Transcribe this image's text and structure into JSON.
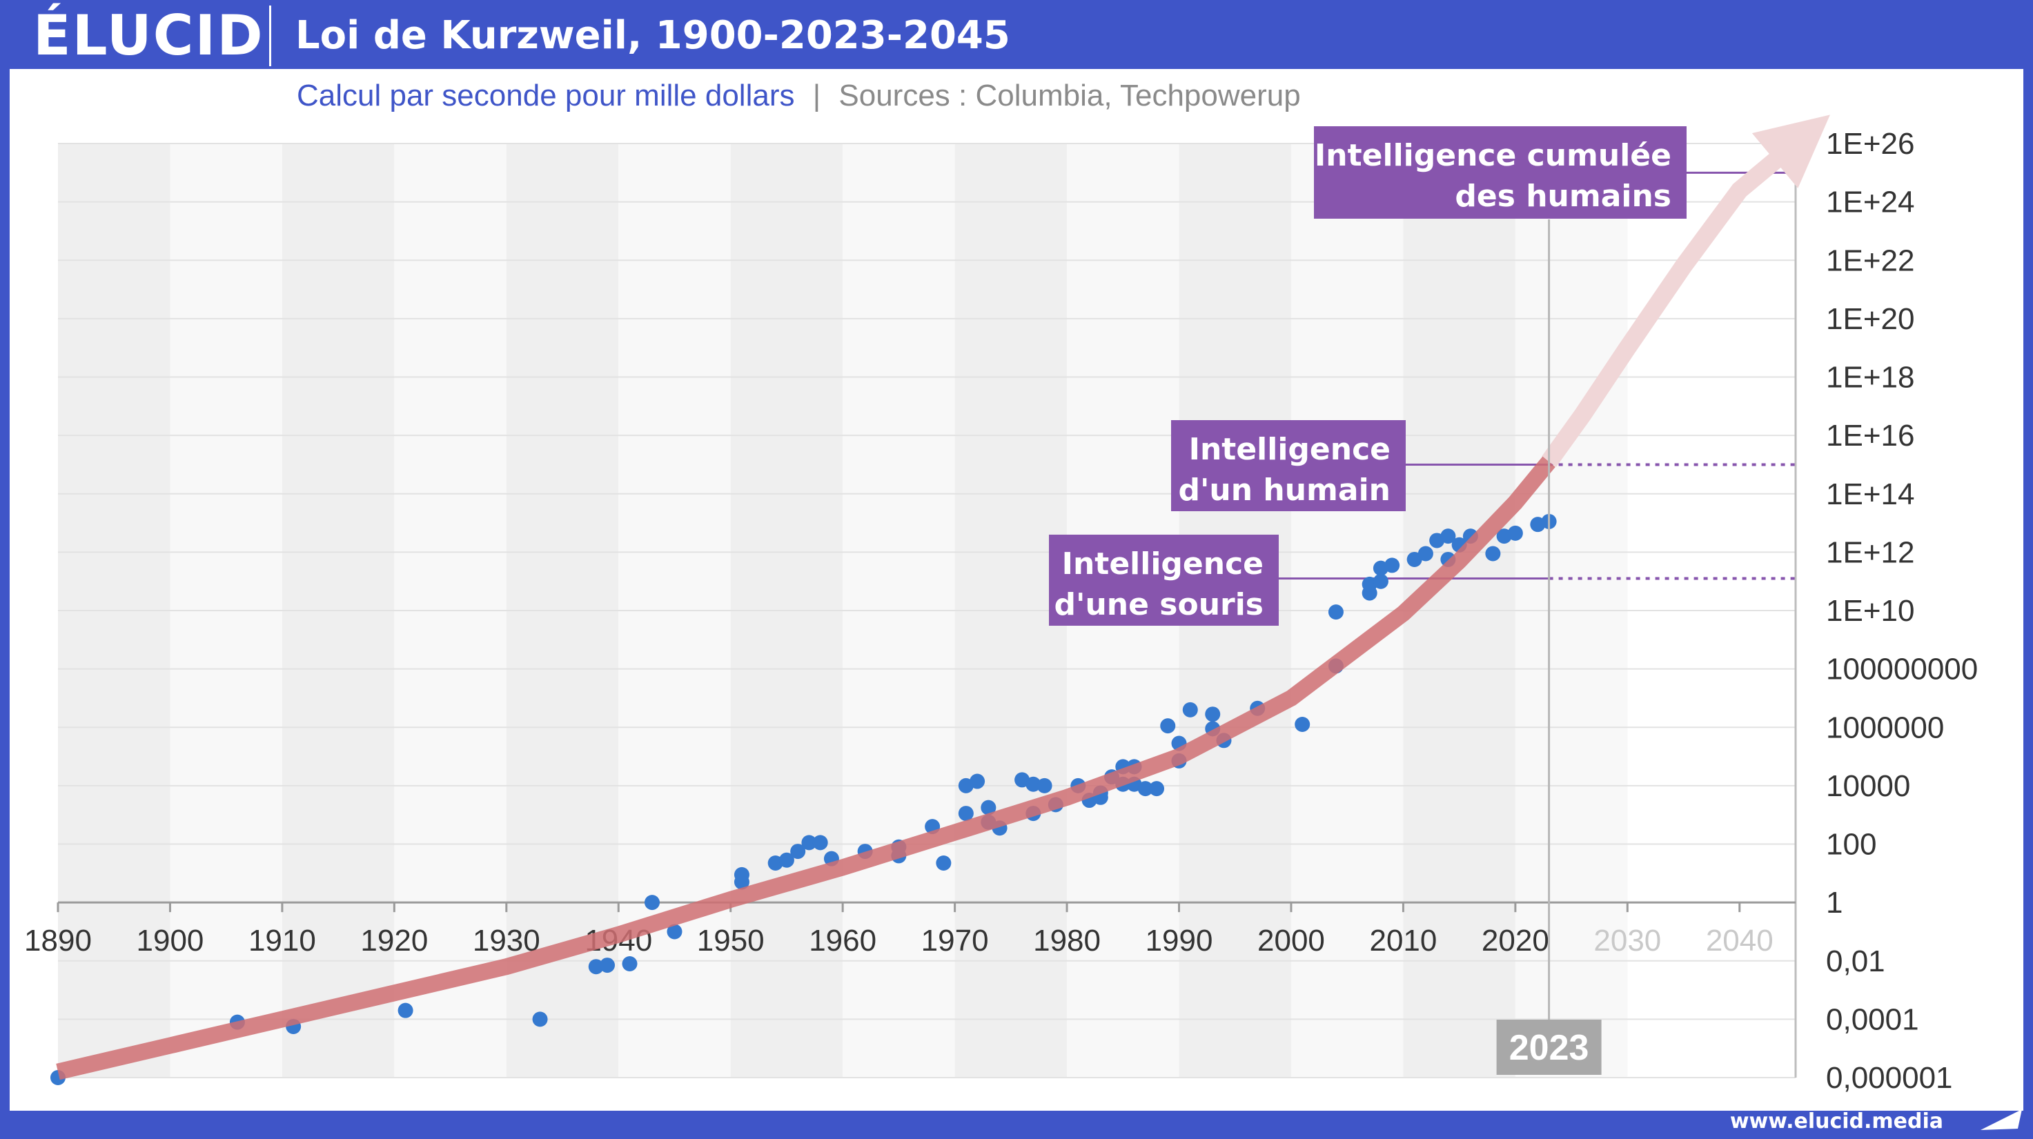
{
  "header": {
    "logo": "ÉLUCID",
    "title": "Loi de Kurzweil, 1900-2023-2045"
  },
  "subtitle": {
    "main": "Calcul par seconde pour mille dollars",
    "separator": "|",
    "sources": "Sources : Columbia, Techpowerup"
  },
  "footer": {
    "url": "www.elucid.media"
  },
  "colors": {
    "brand_blue": "#3f55c8",
    "points": "#3579cf",
    "trend": "#cf6f72",
    "annotation": "#8755ad",
    "marker": "#a8a8a8"
  },
  "chart_data": {
    "type": "scatter",
    "title": "Loi de Kurzweil, 1900-2023-2045",
    "subtitle": "Calcul par seconde pour mille dollars",
    "y_scale": "log",
    "xlim": [
      1890,
      2045
    ],
    "ylim_exponent": [
      -6,
      26
    ],
    "x_ticks": [
      "1890",
      "1900",
      "1910",
      "1920",
      "1930",
      "1940",
      "1950",
      "1960",
      "1970",
      "1980",
      "1990",
      "2000",
      "2010",
      "2020",
      "2030",
      "2040"
    ],
    "y_ticks": [
      {
        "exp": 26,
        "label": "1E+26"
      },
      {
        "exp": 24,
        "label": "1E+24"
      },
      {
        "exp": 22,
        "label": "1E+22"
      },
      {
        "exp": 20,
        "label": "1E+20"
      },
      {
        "exp": 18,
        "label": "1E+18"
      },
      {
        "exp": 16,
        "label": "1E+16"
      },
      {
        "exp": 14,
        "label": "1E+14"
      },
      {
        "exp": 12,
        "label": "1E+12"
      },
      {
        "exp": 10,
        "label": "1E+10"
      },
      {
        "exp": 8,
        "label": "100000000"
      },
      {
        "exp": 6,
        "label": "1000000"
      },
      {
        "exp": 4,
        "label": "10000"
      },
      {
        "exp": 2,
        "label": "100"
      },
      {
        "exp": 0,
        "label": "1"
      },
      {
        "exp": -2,
        "label": "0,01"
      },
      {
        "exp": -4,
        "label": "0,0001"
      },
      {
        "exp": -6,
        "label": "0,000001"
      }
    ],
    "points": [
      {
        "x": 1890,
        "y_exp": -6
      },
      {
        "x": 1906,
        "y_exp": -4.1
      },
      {
        "x": 1911,
        "y_exp": -4.25
      },
      {
        "x": 1921,
        "y_exp": -3.7
      },
      {
        "x": 1933,
        "y_exp": -4.0
      },
      {
        "x": 1938,
        "y_exp": -2.2
      },
      {
        "x": 1939,
        "y_exp": -2.15
      },
      {
        "x": 1941,
        "y_exp": -2.1
      },
      {
        "x": 1943,
        "y_exp": 0
      },
      {
        "x": 1945,
        "y_exp": -1
      },
      {
        "x": 1951,
        "y_exp": 0.7
      },
      {
        "x": 1951,
        "y_exp": 0.95
      },
      {
        "x": 1954,
        "y_exp": 1.35
      },
      {
        "x": 1955,
        "y_exp": 1.45
      },
      {
        "x": 1956,
        "y_exp": 1.75
      },
      {
        "x": 1957,
        "y_exp": 2.05
      },
      {
        "x": 1958,
        "y_exp": 2.05
      },
      {
        "x": 1959,
        "y_exp": 1.5
      },
      {
        "x": 1962,
        "y_exp": 1.75
      },
      {
        "x": 1965,
        "y_exp": 1.6
      },
      {
        "x": 1965,
        "y_exp": 1.9
      },
      {
        "x": 1968,
        "y_exp": 2.6
      },
      {
        "x": 1969,
        "y_exp": 1.35
      },
      {
        "x": 1971,
        "y_exp": 3.05
      },
      {
        "x": 1971,
        "y_exp": 4.0
      },
      {
        "x": 1972,
        "y_exp": 4.15
      },
      {
        "x": 1973,
        "y_exp": 3.25
      },
      {
        "x": 1973,
        "y_exp": 2.75
      },
      {
        "x": 1974,
        "y_exp": 2.55
      },
      {
        "x": 1976,
        "y_exp": 4.2
      },
      {
        "x": 1977,
        "y_exp": 4.05
      },
      {
        "x": 1977,
        "y_exp": 3.05
      },
      {
        "x": 1978,
        "y_exp": 4.0
      },
      {
        "x": 1979,
        "y_exp": 3.35
      },
      {
        "x": 1981,
        "y_exp": 4.0
      },
      {
        "x": 1982,
        "y_exp": 3.5
      },
      {
        "x": 1983,
        "y_exp": 3.75
      },
      {
        "x": 1983,
        "y_exp": 3.6
      },
      {
        "x": 1984,
        "y_exp": 4.3
      },
      {
        "x": 1985,
        "y_exp": 4.05
      },
      {
        "x": 1985,
        "y_exp": 4.65
      },
      {
        "x": 1986,
        "y_exp": 4.65
      },
      {
        "x": 1986,
        "y_exp": 4.05
      },
      {
        "x": 1987,
        "y_exp": 3.9
      },
      {
        "x": 1988,
        "y_exp": 3.9
      },
      {
        "x": 1989,
        "y_exp": 6.05
      },
      {
        "x": 1990,
        "y_exp": 5.45
      },
      {
        "x": 1990,
        "y_exp": 4.85
      },
      {
        "x": 1991,
        "y_exp": 6.6
      },
      {
        "x": 1993,
        "y_exp": 6.45
      },
      {
        "x": 1993,
        "y_exp": 5.95
      },
      {
        "x": 1994,
        "y_exp": 5.55
      },
      {
        "x": 1997,
        "y_exp": 6.65
      },
      {
        "x": 2001,
        "y_exp": 6.1
      },
      {
        "x": 2004,
        "y_exp": 9.95
      },
      {
        "x": 2004,
        "y_exp": 8.1
      },
      {
        "x": 2007,
        "y_exp": 10.6
      },
      {
        "x": 2007,
        "y_exp": 10.9
      },
      {
        "x": 2008,
        "y_exp": 11.0
      },
      {
        "x": 2008,
        "y_exp": 11.45
      },
      {
        "x": 2009,
        "y_exp": 11.55
      },
      {
        "x": 2011,
        "y_exp": 11.75
      },
      {
        "x": 2012,
        "y_exp": 11.95
      },
      {
        "x": 2013,
        "y_exp": 12.4
      },
      {
        "x": 2014,
        "y_exp": 12.55
      },
      {
        "x": 2014,
        "y_exp": 11.75
      },
      {
        "x": 2015,
        "y_exp": 12.25
      },
      {
        "x": 2016,
        "y_exp": 12.55
      },
      {
        "x": 2018,
        "y_exp": 11.95
      },
      {
        "x": 2019,
        "y_exp": 12.55
      },
      {
        "x": 2020,
        "y_exp": 12.65
      },
      {
        "x": 2022,
        "y_exp": 12.95
      },
      {
        "x": 2023,
        "y_exp": 13.05
      }
    ],
    "trend": [
      {
        "x": 1890,
        "y_exp": -5.8
      },
      {
        "x": 1900,
        "y_exp": -4.9
      },
      {
        "x": 1910,
        "y_exp": -4.0
      },
      {
        "x": 1920,
        "y_exp": -3.1
      },
      {
        "x": 1930,
        "y_exp": -2.2
      },
      {
        "x": 1940,
        "y_exp": -1.1
      },
      {
        "x": 1950,
        "y_exp": 0.1
      },
      {
        "x": 1960,
        "y_exp": 1.2
      },
      {
        "x": 1970,
        "y_exp": 2.4
      },
      {
        "x": 1980,
        "y_exp": 3.6
      },
      {
        "x": 1990,
        "y_exp": 5.0
      },
      {
        "x": 2000,
        "y_exp": 7.0
      },
      {
        "x": 2010,
        "y_exp": 9.9
      },
      {
        "x": 2015,
        "y_exp": 11.7
      },
      {
        "x": 2020,
        "y_exp": 13.7
      },
      {
        "x": 2023,
        "y_exp": 15.1
      }
    ],
    "projection": [
      {
        "x": 2023,
        "y_exp": 15.1
      },
      {
        "x": 2026,
        "y_exp": 16.7
      },
      {
        "x": 2030,
        "y_exp": 19.0
      },
      {
        "x": 2035,
        "y_exp": 21.8
      },
      {
        "x": 2040,
        "y_exp": 24.4
      },
      {
        "x": 2045,
        "y_exp": 26.0
      }
    ],
    "marker": {
      "x": 2023,
      "label": "2023"
    },
    "annotations": [
      {
        "name": "humanity",
        "line1": "Intelligence cumulée",
        "line2": "des humains",
        "y_exp": 25.0
      },
      {
        "name": "human",
        "line1": "Intelligence",
        "line2": "d'un humain",
        "y_exp": 15.0
      },
      {
        "name": "mouse",
        "line1": "Intelligence",
        "line2": "d'une souris",
        "y_exp": 11.1
      }
    ]
  }
}
